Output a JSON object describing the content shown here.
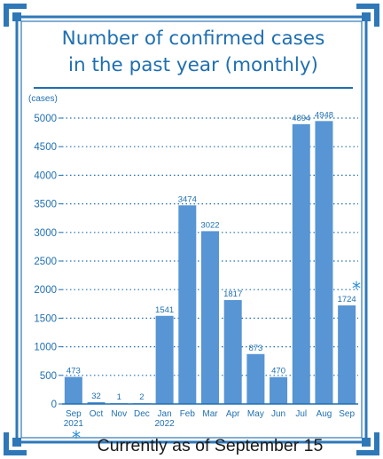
{
  "colors": {
    "bar": "#5795d4",
    "text": "#1f6fb0",
    "frame": "#2e78b8",
    "accent": "#2a8fd6",
    "footnote": "#1a1a1a"
  },
  "chart_data": {
    "type": "bar",
    "title_line1": "Number of confirmed cases",
    "title_line2": "in the past year (monthly)",
    "ylabel": "(cases)",
    "ylim": [
      0,
      5000
    ],
    "yticks": [
      0,
      500,
      1000,
      1500,
      2000,
      2500,
      3000,
      3500,
      4000,
      4500,
      5000
    ],
    "grid": "dotted horizontal",
    "categories": [
      "Sep 2021",
      "Oct",
      "Nov",
      "Dec",
      "Jan 2022",
      "Feb",
      "Mar",
      "Apr",
      "May",
      "Jun",
      "Jul",
      "Aug",
      "Sep"
    ],
    "category_lines": [
      [
        "Sep",
        "2021"
      ],
      [
        "Oct"
      ],
      [
        "Nov"
      ],
      [
        "Dec"
      ],
      [
        "Jan",
        "2022"
      ],
      [
        "Feb"
      ],
      [
        "Mar"
      ],
      [
        "Apr"
      ],
      [
        "May"
      ],
      [
        "Jun"
      ],
      [
        "Jul"
      ],
      [
        "Aug"
      ],
      [
        "Sep"
      ]
    ],
    "values": [
      473,
      32,
      1,
      2,
      1541,
      3474,
      3022,
      1817,
      873,
      470,
      4894,
      4948,
      1724
    ],
    "data_labels": [
      "473",
      "32",
      "1",
      "2",
      "1541",
      "3474",
      "3022",
      "1817",
      "873",
      "470",
      "4894",
      "4948",
      "1724"
    ],
    "annotation_marker": "*"
  },
  "footnote": {
    "marker": "*",
    "text": "Currently as of September 15"
  }
}
